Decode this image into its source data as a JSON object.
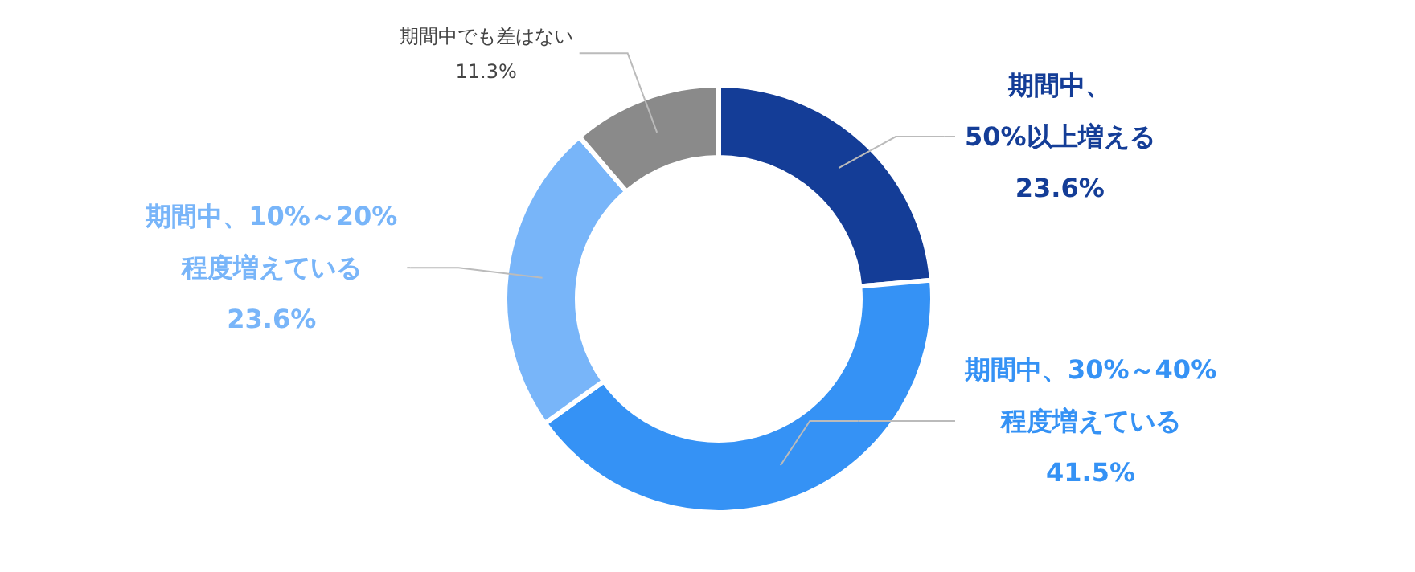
{
  "chart_data": {
    "type": "donut",
    "categories": [
      "期間中、\n50%以上増える",
      "期間中、30%～40%\n程度増えている",
      "期間中、10%～20%\n程度増えている",
      "期間中でも差はない"
    ],
    "values": [
      23.6,
      41.5,
      23.6,
      11.3
    ],
    "value_labels": [
      "23.6%",
      "41.5%",
      "23.6%",
      "11.3%"
    ],
    "colors": [
      "#143d97",
      "#3592f5",
      "#78b5f9",
      "#8a8a8a"
    ]
  }
}
